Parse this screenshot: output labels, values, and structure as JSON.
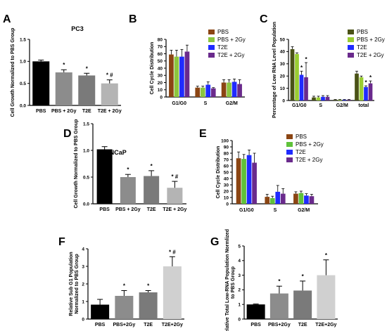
{
  "chart_data": [
    {
      "panel": "A",
      "type": "bar",
      "title": "PC3",
      "ylabel": "Cell Growth Normalized to PBS Group",
      "ylim": [
        0,
        1.5
      ],
      "yticks": [
        "0.0",
        "0.5",
        "1.0",
        "1.5"
      ],
      "categories": [
        "PBS",
        "PBS + 2Gy",
        "T2E",
        "T2E + 2Gy"
      ],
      "values": [
        1.0,
        0.75,
        0.68,
        0.5
      ],
      "errors": [
        0.03,
        0.06,
        0.05,
        0.08
      ],
      "annotations": [
        "",
        "*",
        "*",
        "* #"
      ],
      "colors": [
        "#000000",
        "#8c8c8c",
        "#7a7a7a",
        "#b4b4b4"
      ]
    },
    {
      "panel": "B",
      "type": "bar",
      "ylabel": "Cell Cycle Distribution",
      "ylim": [
        0,
        80
      ],
      "yticks": [
        "0",
        "10",
        "20",
        "30",
        "40",
        "50",
        "60",
        "70",
        "80"
      ],
      "categories": [
        "G1/G0",
        "S",
        "G2/M"
      ],
      "series": [
        {
          "name": "PBS",
          "values": [
            59,
            13,
            20
          ],
          "errors": [
            6,
            2,
            4
          ]
        },
        {
          "name": "PBS + 2Gy",
          "values": [
            56,
            13,
            20
          ],
          "errors": [
            9,
            2,
            4
          ]
        },
        {
          "name": "T2E",
          "values": [
            56,
            17,
            21
          ],
          "errors": [
            10,
            4,
            4
          ]
        },
        {
          "name": "T2E + 2Gy",
          "values": [
            63,
            12,
            18
          ],
          "errors": [
            9,
            1,
            6
          ]
        }
      ],
      "colors": [
        "#8b4513",
        "#8cc63f",
        "#1f2bff",
        "#6a2a8c"
      ],
      "legend": "top-right"
    },
    {
      "panel": "C",
      "type": "bar",
      "ylabel": "Percentage of Low RNA Level Population",
      "ylim": [
        0,
        50
      ],
      "yticks": [
        "0",
        "10",
        "20",
        "30",
        "40",
        "50"
      ],
      "categories": [
        "G1/G0",
        "S",
        "G2/M",
        "total"
      ],
      "series": [
        {
          "name": "PBS",
          "values": [
            42,
            2.5,
            0.5,
            22
          ],
          "errors": [
            2,
            1,
            0.3,
            2
          ]
        },
        {
          "name": "PBS + 2Gy",
          "values": [
            38,
            2.5,
            0.5,
            19
          ],
          "errors": [
            1,
            1,
            0.3,
            1
          ]
        },
        {
          "name": "T2E",
          "values": [
            21,
            3,
            0.5,
            11
          ],
          "errors": [
            3,
            1,
            0.3,
            1
          ]
        },
        {
          "name": "T2E + 2Gy",
          "values": [
            19,
            3,
            0.5,
            14
          ],
          "errors": [
            12,
            1,
            0.3,
            2
          ]
        }
      ],
      "annotations": [
        [
          "",
          "",
          "*",
          "*"
        ],
        [
          "",
          "",
          "",
          ""
        ],
        [
          "",
          "",
          "",
          ""
        ],
        [
          "",
          "",
          "*",
          "*"
        ]
      ],
      "colors": [
        "#4a5216",
        "#9acd32",
        "#1f2bff",
        "#6a2a8c"
      ],
      "legend": "top-right"
    },
    {
      "panel": "D",
      "type": "bar",
      "title": "LNCaP",
      "ylabel": "Cell Growth Normalized to PBS Group",
      "ylim": [
        0,
        1.5
      ],
      "yticks": [
        "0.0",
        "0.5",
        "1.0",
        "1.5"
      ],
      "categories": [
        "PBS",
        "PBS + 2Gy",
        "T2E",
        "T2E + 2Gy"
      ],
      "values": [
        1.02,
        0.5,
        0.52,
        0.3
      ],
      "errors": [
        0.05,
        0.05,
        0.1,
        0.12
      ],
      "annotations": [
        "",
        "*",
        "*",
        "* #"
      ],
      "colors": [
        "#000000",
        "#8c8c8c",
        "#7a7a7a",
        "#b4b4b4"
      ]
    },
    {
      "panel": "E",
      "type": "bar",
      "ylabel": "Cell Cycle Distribution",
      "ylim": [
        0,
        100
      ],
      "yticks": [
        "0",
        "10",
        "20",
        "30",
        "40",
        "50",
        "60",
        "70",
        "80",
        "90",
        "100"
      ],
      "categories": [
        "G1/G0",
        "S",
        "G2/M"
      ],
      "series": [
        {
          "name": "PBS",
          "values": [
            72,
            11,
            16
          ],
          "errors": [
            10,
            4,
            3
          ]
        },
        {
          "name": "PBS + 2Gy",
          "values": [
            71,
            9,
            17
          ],
          "errors": [
            7,
            3,
            3
          ]
        },
        {
          "name": "T2E",
          "values": [
            77,
            19,
            13
          ],
          "errors": [
            8,
            10,
            3
          ]
        },
        {
          "name": "T2E + 2Gy",
          "values": [
            65,
            16,
            12
          ],
          "errors": [
            15,
            8,
            3
          ]
        }
      ],
      "colors": [
        "#8b4513",
        "#5fc23a",
        "#1f2bff",
        "#6a2a8c"
      ],
      "legend": "top-right"
    },
    {
      "panel": "F",
      "type": "bar",
      "ylabel": "Relative Sub G1 Population Normalized to PBS Group",
      "ylim": [
        0,
        4
      ],
      "yticks": [
        "0",
        "1",
        "2",
        "3",
        "4"
      ],
      "categories": [
        "PBS",
        "PBS+2Gy",
        "T2E",
        "T2E+2Gy"
      ],
      "values": [
        0.82,
        1.32,
        1.52,
        3.0
      ],
      "errors": [
        0.3,
        0.3,
        0.1,
        0.55
      ],
      "annotations": [
        "",
        "*",
        "*",
        "* #"
      ],
      "colors": [
        "#000000",
        "#8c8c8c",
        "#7a7a7a",
        "#d0d0d0"
      ]
    },
    {
      "panel": "G",
      "type": "bar",
      "ylabel": "Relative Total Low-RNA Population Normlized to PBS Group",
      "ylim": [
        0,
        5
      ],
      "yticks": [
        "0",
        "1",
        "2",
        "3",
        "4",
        "5"
      ],
      "categories": [
        "PBS",
        "PBS+2Gy",
        "T2E",
        "T2E+2Gy"
      ],
      "values": [
        1.0,
        1.75,
        1.95,
        3.0
      ],
      "errors": [
        0.03,
        0.5,
        0.65,
        1.05
      ],
      "annotations": [
        "",
        "*",
        "*",
        "*"
      ],
      "colors": [
        "#000000",
        "#8c8c8c",
        "#7a7a7a",
        "#d0d0d0"
      ]
    }
  ]
}
